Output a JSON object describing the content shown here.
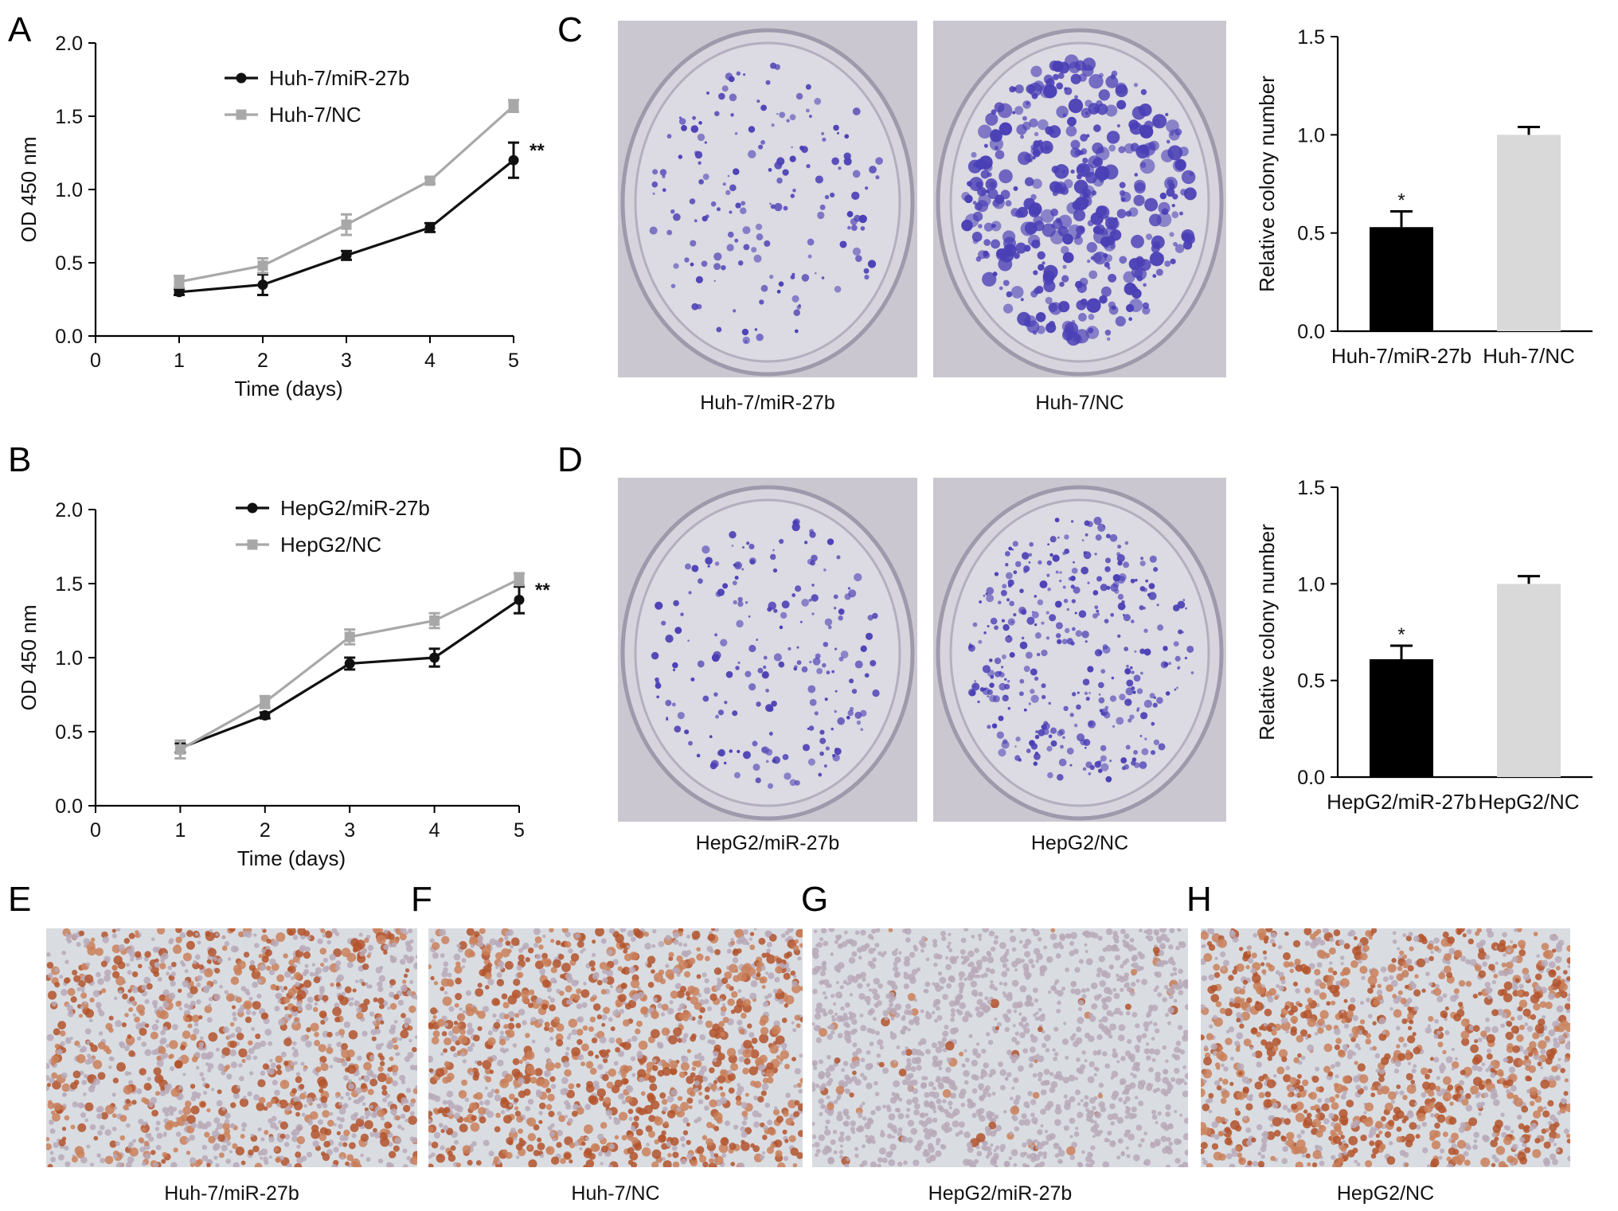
{
  "panels": {
    "A": "A",
    "B": "B",
    "C": "C",
    "D": "D",
    "E": "E",
    "F": "F",
    "G": "G",
    "H": "H"
  },
  "colors": {
    "black_series": "#111111",
    "gray_series": "#a8a8a8",
    "bar_black": "#000000",
    "bar_gray": "#d9d9d9",
    "stain_purple": "#4a3fb5",
    "stain_brown": "#b5542a",
    "dish_bg": "#d6d3dc",
    "ihc_bg": "#d9dde2"
  },
  "chart_data": [
    {
      "id": "A",
      "type": "line",
      "title": "",
      "xlabel": "Time (days)",
      "ylabel": "OD 450 nm",
      "xlim": [
        0,
        5
      ],
      "ylim": [
        0,
        2.0
      ],
      "xticks": [
        "0",
        "1",
        "2",
        "3",
        "4",
        "5"
      ],
      "yticks": [
        "0.0",
        "0.5",
        "1.0",
        "1.5",
        "2.0"
      ],
      "legend_position": "top-left",
      "significance": "**",
      "series": [
        {
          "name": "Huh-7/miR-27b",
          "color": "#111111",
          "marker": "circle",
          "x": [
            1,
            2,
            3,
            4,
            5
          ],
          "y": [
            0.3,
            0.35,
            0.55,
            0.74,
            1.2
          ],
          "err": [
            0.02,
            0.07,
            0.03,
            0.03,
            0.12
          ]
        },
        {
          "name": "Huh-7/NC",
          "color": "#a8a8a8",
          "marker": "square",
          "x": [
            1,
            2,
            3,
            4,
            5
          ],
          "y": [
            0.37,
            0.48,
            0.76,
            1.06,
            1.57
          ],
          "err": [
            0.04,
            0.05,
            0.07,
            0.02,
            0.04
          ]
        }
      ]
    },
    {
      "id": "B",
      "type": "line",
      "title": "",
      "xlabel": "Time (days)",
      "ylabel": "OD 450 nm",
      "xlim": [
        0,
        5
      ],
      "ylim": [
        0,
        2.0
      ],
      "xticks": [
        "0",
        "1",
        "2",
        "3",
        "4",
        "5"
      ],
      "yticks": [
        "0.0",
        "0.5",
        "1.0",
        "1.5",
        "2.0"
      ],
      "legend_position": "top-left",
      "significance": "**",
      "series": [
        {
          "name": "HepG2/miR-27b",
          "color": "#111111",
          "marker": "circle",
          "x": [
            1,
            2,
            3,
            4,
            5
          ],
          "y": [
            0.39,
            0.61,
            0.96,
            1.0,
            1.39
          ],
          "err": [
            0.03,
            0.02,
            0.04,
            0.06,
            0.09
          ]
        },
        {
          "name": "HepG2/NC",
          "color": "#a8a8a8",
          "marker": "square",
          "x": [
            1,
            2,
            3,
            4,
            5
          ],
          "y": [
            0.38,
            0.7,
            1.14,
            1.25,
            1.53
          ],
          "err": [
            0.06,
            0.04,
            0.05,
            0.05,
            0.04
          ]
        }
      ]
    },
    {
      "id": "C",
      "type": "bar",
      "title": "",
      "xlabel": "",
      "ylabel": "Relative colony number",
      "ylim": [
        0,
        1.5
      ],
      "yticks": [
        "0.0",
        "0.5",
        "1.0",
        "1.5"
      ],
      "categories": [
        "Huh-7/miR-27b",
        "Huh-7/NC"
      ],
      "values": [
        0.53,
        1.0
      ],
      "err": [
        0.08,
        0.04
      ],
      "bar_colors": [
        "#000000",
        "#d9d9d9"
      ],
      "annotations": [
        "*",
        ""
      ]
    },
    {
      "id": "D",
      "type": "bar",
      "title": "",
      "xlabel": "",
      "ylabel": "Relative colony number",
      "ylim": [
        0,
        1.5
      ],
      "yticks": [
        "0.0",
        "0.5",
        "1.0",
        "1.5"
      ],
      "categories": [
        "HepG2/miR-27b",
        "HepG2/NC"
      ],
      "values": [
        0.61,
        1.0
      ],
      "err": [
        0.07,
        0.04
      ],
      "bar_colors": [
        "#000000",
        "#d9d9d9"
      ],
      "annotations": [
        "*",
        ""
      ]
    }
  ],
  "photos": {
    "colony_C": [
      "Huh-7/miR-27b",
      "Huh-7/NC"
    ],
    "colony_D": [
      "HepG2/miR-27b",
      "HepG2/NC"
    ],
    "ihc": [
      "Huh-7/miR-27b",
      "Huh-7/NC",
      "HepG2/miR-27b",
      "HepG2/NC"
    ]
  }
}
